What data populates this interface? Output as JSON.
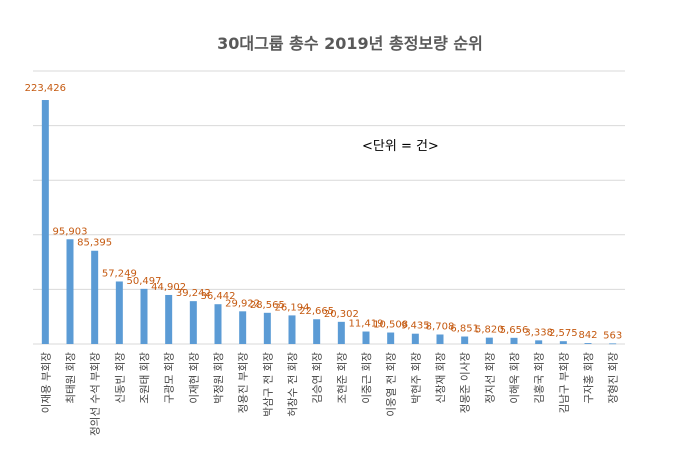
{
  "chart_data": {
    "type": "bar",
    "title": "30대그룹 총수 2019년 총정보량 순위",
    "annotation": "<단위 = 건>",
    "categories": [
      "이재용 부회장",
      "최태원 회장",
      "정의선 수석 부회장",
      "신동빈 회장",
      "조원태 회장",
      "구광모 회장",
      "이재현 회장",
      "박정원 회장",
      "정용진 부회장",
      "박삼구 전 회장",
      "허창수 전 회장",
      "김승연 회장",
      "조현준 회장",
      "이중근 회장",
      "이웅열 전 회장",
      "박현주 회장",
      "신창재 회장",
      "정몽준 이사장",
      "정지선 회장",
      "이해욱 회장",
      "김홍국 회장",
      "김남구 부회장",
      "구자홍 회장",
      "장형진 회장"
    ],
    "values": [
      223426,
      95903,
      85395,
      57249,
      50497,
      44902,
      39242,
      36442,
      29922,
      28565,
      26194,
      22665,
      20302,
      11419,
      10508,
      9435,
      8708,
      6851,
      5820,
      5656,
      3338,
      2575,
      842,
      563
    ],
    "value_labels": [
      "223,426",
      "95,903",
      "85,395",
      "57,249",
      "50,497",
      "44,902",
      "39,242",
      "36,442",
      "29,922",
      "28,565",
      "26,194",
      "22,665",
      "20,302",
      "11,419",
      "10,508",
      "9,435",
      "8,708",
      "6,851",
      "5,820",
      "5,656",
      "3,338",
      "2,575",
      "842",
      "563"
    ],
    "ylim": [
      0,
      250000
    ],
    "grid": true,
    "colors": {
      "bar": "#5b9bd5",
      "data_label": "#c55a11",
      "gridline": "#d9d9d9"
    }
  }
}
